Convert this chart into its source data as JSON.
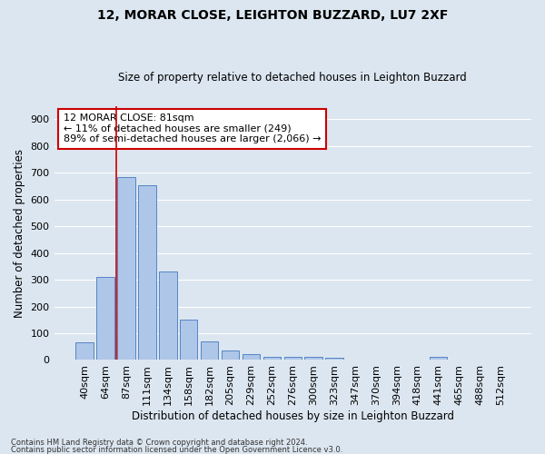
{
  "title1": "12, MORAR CLOSE, LEIGHTON BUZZARD, LU7 2XF",
  "title2": "Size of property relative to detached houses in Leighton Buzzard",
  "xlabel": "Distribution of detached houses by size in Leighton Buzzard",
  "ylabel": "Number of detached properties",
  "footnote1": "Contains HM Land Registry data © Crown copyright and database right 2024.",
  "footnote2": "Contains public sector information licensed under the Open Government Licence v3.0.",
  "annotation_title": "12 MORAR CLOSE: 81sqm",
  "annotation_line1": "← 11% of detached houses are smaller (249)",
  "annotation_line2": "89% of semi-detached houses are larger (2,066) →",
  "bar_labels": [
    "40sqm",
    "64sqm",
    "87sqm",
    "111sqm",
    "134sqm",
    "158sqm",
    "182sqm",
    "205sqm",
    "229sqm",
    "252sqm",
    "276sqm",
    "300sqm",
    "323sqm",
    "347sqm",
    "370sqm",
    "394sqm",
    "418sqm",
    "441sqm",
    "465sqm",
    "488sqm",
    "512sqm"
  ],
  "bar_values": [
    65,
    310,
    685,
    655,
    330,
    150,
    68,
    37,
    22,
    12,
    12,
    12,
    8,
    0,
    0,
    0,
    0,
    12,
    0,
    0,
    0
  ],
  "bar_color": "#aec6e8",
  "bar_edge_color": "#5585c5",
  "vline_color": "#cc0000",
  "annotation_box_color": "#cc0000",
  "ylim": [
    0,
    950
  ],
  "yticks": [
    0,
    100,
    200,
    300,
    400,
    500,
    600,
    700,
    800,
    900
  ],
  "bg_color": "#dce6f0",
  "grid_color": "#ffffff",
  "title1_fontsize": 10,
  "title2_fontsize": 8.5,
  "xlabel_fontsize": 8.5,
  "ylabel_fontsize": 8.5,
  "tick_fontsize": 8,
  "annot_fontsize": 8,
  "footnote_fontsize": 6
}
